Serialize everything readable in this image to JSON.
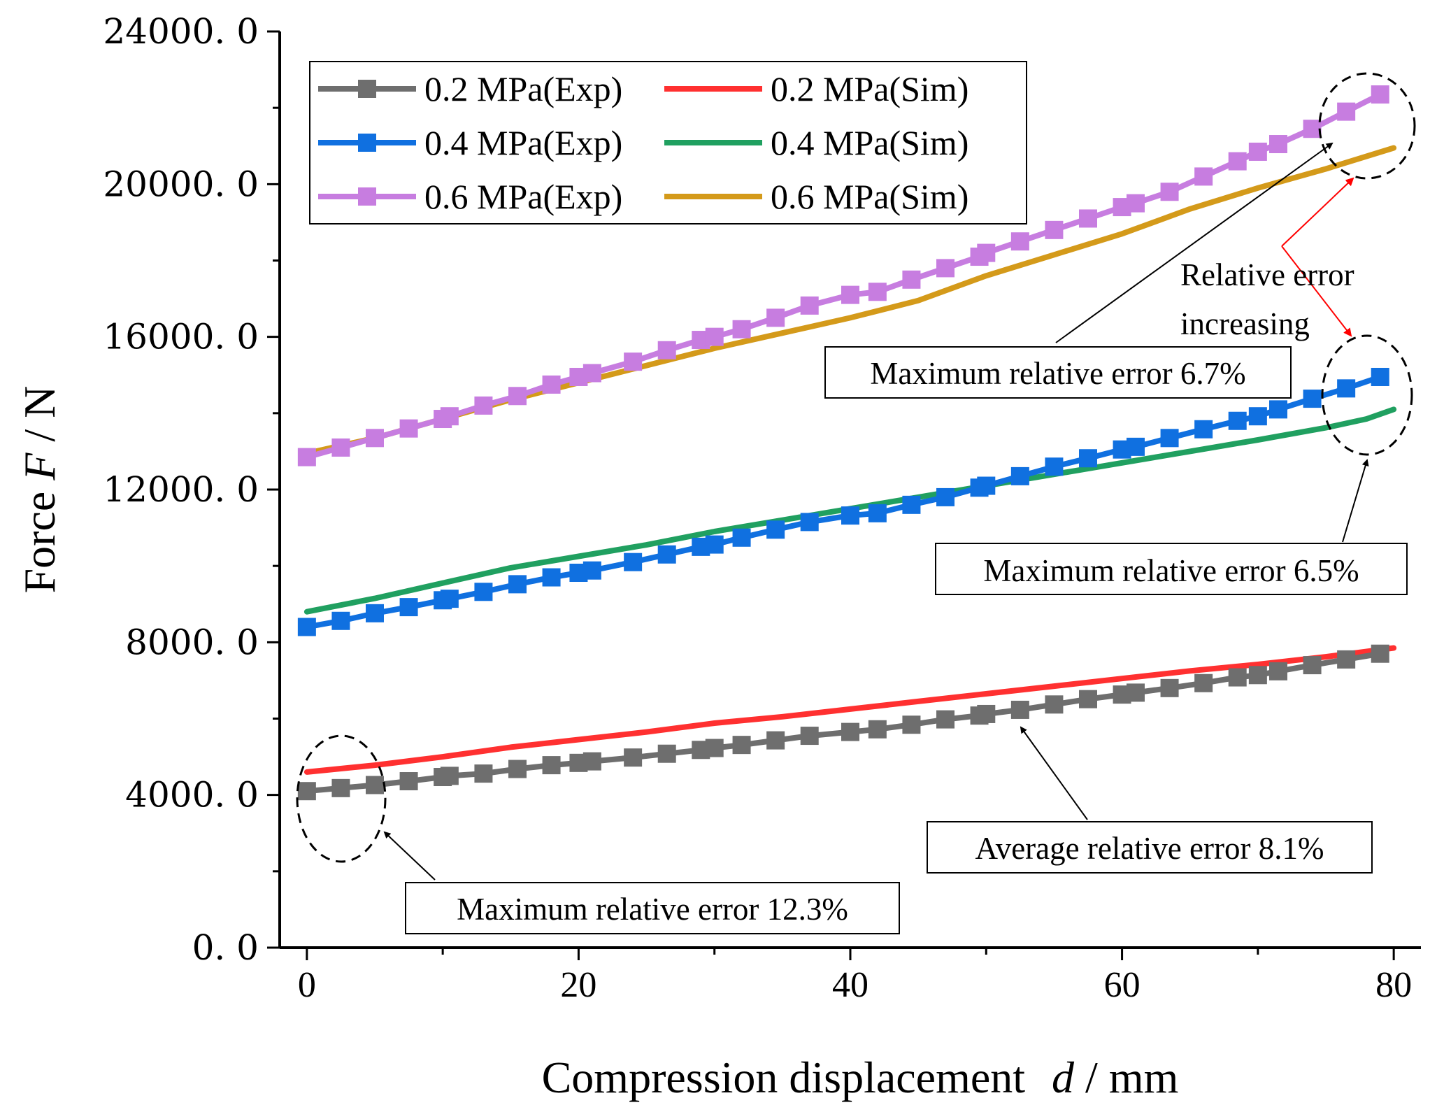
{
  "chart_data": {
    "type": "line",
    "xlabel": {
      "prefix": "Compression displacement",
      "var": "d",
      "suffix": "/ mm"
    },
    "ylabel": {
      "prefix": "Force",
      "var": "F",
      "suffix": "/ N"
    },
    "xlim": [
      -2,
      82
    ],
    "ylim": [
      0,
      24000
    ],
    "xticks": [
      {
        "value": 0,
        "label": "0"
      },
      {
        "value": 20,
        "label": "20"
      },
      {
        "value": 40,
        "label": "40"
      },
      {
        "value": 60,
        "label": "60"
      },
      {
        "value": 80,
        "label": "80"
      }
    ],
    "yticks": [
      {
        "value": 0,
        "label": "0. 0"
      },
      {
        "value": 4000,
        "label": "4000. 0"
      },
      {
        "value": 8000,
        "label": "8000. 0"
      },
      {
        "value": 12000,
        "label": "12000. 0"
      },
      {
        "value": 16000,
        "label": "16000. 0"
      },
      {
        "value": 20000,
        "label": "20000. 0"
      },
      {
        "value": 24000,
        "label": "24000. 0"
      }
    ],
    "grid": false,
    "legend_position": "top-left",
    "series": [
      {
        "name": "0.2 MPa(Exp)",
        "color": "#6e6e6e",
        "marker": "square",
        "x": [
          0,
          2.5,
          5,
          7.5,
          10,
          10.5,
          13,
          15.5,
          18,
          20,
          21,
          24,
          26.5,
          29,
          30,
          32,
          34.5,
          37,
          40,
          42,
          44.5,
          47,
          49.5,
          50,
          52.5,
          55,
          57.5,
          60,
          61,
          63.5,
          66,
          68.5,
          70,
          71.5,
          74,
          76.5,
          79
        ],
        "y": [
          4100,
          4180,
          4260,
          4360,
          4470,
          4500,
          4560,
          4680,
          4780,
          4840,
          4880,
          4980,
          5080,
          5180,
          5230,
          5310,
          5430,
          5550,
          5650,
          5720,
          5840,
          5980,
          6080,
          6120,
          6230,
          6370,
          6510,
          6630,
          6680,
          6800,
          6930,
          7080,
          7140,
          7240,
          7400,
          7550,
          7700
        ]
      },
      {
        "name": "0.2 MPa(Sim)",
        "color": "#ff3030",
        "marker": "none",
        "x": [
          0,
          5,
          10,
          15,
          20,
          25,
          30,
          35,
          40,
          45,
          50,
          55,
          60,
          65,
          70,
          75,
          80
        ],
        "y": [
          4600,
          4780,
          5000,
          5250,
          5450,
          5650,
          5880,
          6050,
          6250,
          6450,
          6650,
          6850,
          7050,
          7250,
          7420,
          7620,
          7850
        ]
      },
      {
        "name": "0.4 MPa(Exp)",
        "color": "#1070e0",
        "marker": "square",
        "x": [
          0,
          2.5,
          5,
          7.5,
          10,
          10.5,
          13,
          15.5,
          18,
          20,
          21,
          24,
          26.5,
          29,
          30,
          32,
          34.5,
          37,
          40,
          42,
          44.5,
          47,
          49.5,
          50,
          52.5,
          55,
          57.5,
          60,
          61,
          63.5,
          66,
          68.5,
          70,
          71.5,
          74,
          76.5,
          79
        ],
        "y": [
          8400,
          8560,
          8760,
          8920,
          9100,
          9140,
          9320,
          9520,
          9700,
          9820,
          9880,
          10100,
          10300,
          10500,
          10560,
          10740,
          10950,
          11150,
          11320,
          11380,
          11600,
          11800,
          12050,
          12100,
          12350,
          12600,
          12820,
          13050,
          13120,
          13350,
          13580,
          13800,
          13920,
          14100,
          14380,
          14650,
          14950
        ]
      },
      {
        "name": "0.4 MPa(Sim)",
        "color": "#20a060",
        "marker": "none",
        "x": [
          0,
          5,
          10,
          15,
          20,
          25,
          30,
          35,
          40,
          45,
          50,
          55,
          60,
          65,
          70,
          75,
          78,
          80
        ],
        "y": [
          8800,
          9150,
          9550,
          9950,
          10250,
          10550,
          10900,
          11200,
          11500,
          11800,
          12100,
          12400,
          12700,
          13000,
          13300,
          13620,
          13850,
          14100
        ]
      },
      {
        "name": "0.6 MPa(Exp)",
        "color": "#c77de0",
        "marker": "square",
        "x": [
          0,
          2.5,
          5,
          7.5,
          10,
          10.5,
          13,
          15.5,
          18,
          20,
          21,
          24,
          26.5,
          29,
          30,
          32,
          34.5,
          37,
          40,
          42,
          44.5,
          47,
          49.5,
          50,
          52.5,
          55,
          57.5,
          60,
          61,
          63.5,
          66,
          68.5,
          70,
          71.5,
          74,
          76.5,
          79
        ],
        "y": [
          12850,
          13100,
          13350,
          13600,
          13850,
          13920,
          14200,
          14450,
          14750,
          14950,
          15050,
          15350,
          15650,
          15920,
          16000,
          16200,
          16500,
          16820,
          17100,
          17180,
          17500,
          17800,
          18100,
          18200,
          18500,
          18800,
          19100,
          19400,
          19500,
          19800,
          20200,
          20600,
          20850,
          21050,
          21450,
          21900,
          22350
        ]
      },
      {
        "name": "0.6 MPa(Sim)",
        "color": "#d49a1a",
        "marker": "none",
        "x": [
          0,
          5,
          10,
          15,
          20,
          25,
          30,
          35,
          40,
          45,
          50,
          55,
          60,
          65,
          70,
          75,
          80
        ],
        "y": [
          12950,
          13350,
          13850,
          14350,
          14800,
          15250,
          15700,
          16100,
          16500,
          16950,
          17600,
          18150,
          18700,
          19350,
          19900,
          20400,
          20950
        ]
      }
    ],
    "annotations": [
      {
        "text": "Maximum relative error 6.7%"
      },
      {
        "text": "Maximum relative error 6.5%"
      },
      {
        "text": "Average relative error 8.1%"
      },
      {
        "text": "Maximum relative error 12.3%"
      },
      {
        "text_line1": "Relative error",
        "text_line2": "increasing"
      }
    ]
  }
}
